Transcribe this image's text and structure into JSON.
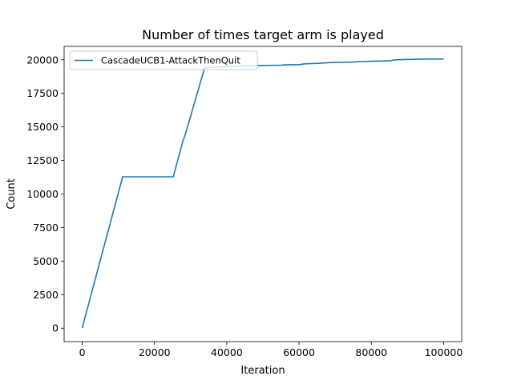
{
  "chart_data": {
    "type": "line",
    "title": "Number of times target arm is played",
    "xlabel": "Iteration",
    "ylabel": "Count",
    "xlim": [
      -5000,
      105000
    ],
    "ylim": [
      -1000,
      21000
    ],
    "xticks": [
      0,
      20000,
      40000,
      60000,
      80000,
      100000
    ],
    "yticks": [
      0,
      2500,
      5000,
      7500,
      10000,
      12500,
      15000,
      17500,
      20000
    ],
    "grid": false,
    "legend_position": "top-left",
    "series": [
      {
        "name": "CascadeUCB1-AttackThenQuit",
        "color": "#1f77b4",
        "x": [
          0,
          11200,
          25200,
          27800,
          28200,
          28600,
          33800,
          34200,
          35000,
          36500,
          40000,
          45000,
          50000,
          55000,
          56000,
          60000,
          61500,
          66000,
          68000,
          75000,
          76500,
          80000,
          85000,
          86500,
          90000,
          95000,
          100000
        ],
        "y": [
          0,
          11280,
          11290,
          13900,
          14200,
          14500,
          19350,
          19400,
          19420,
          19450,
          19500,
          19560,
          19580,
          19600,
          19620,
          19640,
          19700,
          19740,
          19790,
          19830,
          19870,
          19890,
          19920,
          20000,
          20030,
          20060,
          20060
        ]
      }
    ]
  }
}
